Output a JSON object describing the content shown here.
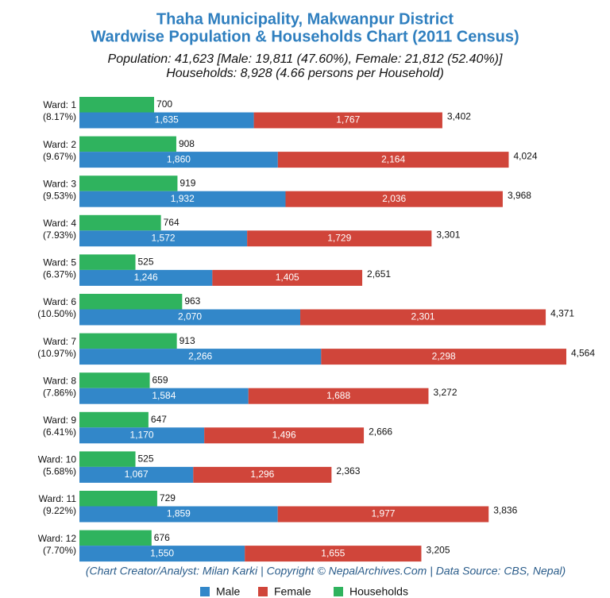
{
  "chart_data": {
    "type": "bar",
    "orientation": "horizontal",
    "title": [
      "Thaha Municipality, Makwanpur District",
      "Wardwise Population & Households Chart (2011 Census)"
    ],
    "subtitle": [
      "Population: 41,623 [Male: 19,811 (47.60%), Female: 21,812 (52.40%)]",
      "Households: 8,928 (4.66 persons per Household)"
    ],
    "credit": "(Chart Creator/Analyst: Milan Karki | Copyright © NepalArchives.Com | Data Source: CBS, Nepal)",
    "categories": [
      "Ward: 1",
      "Ward: 2",
      "Ward: 3",
      "Ward: 4",
      "Ward: 5",
      "Ward: 6",
      "Ward: 7",
      "Ward: 8",
      "Ward: 9",
      "Ward: 10",
      "Ward: 11",
      "Ward: 12"
    ],
    "category_sublabels": [
      "(8.17%)",
      "(9.67%)",
      "(9.53%)",
      "(7.93%)",
      "(6.37%)",
      "(10.50%)",
      "(10.97%)",
      "(7.86%)",
      "(6.41%)",
      "(5.68%)",
      "(9.22%)",
      "(7.70%)"
    ],
    "series": [
      {
        "name": "Male",
        "color": "#3287c9",
        "stack": "population",
        "values": [
          1635,
          1860,
          1932,
          1572,
          1246,
          2070,
          2266,
          1584,
          1170,
          1067,
          1859,
          1550
        ],
        "value_labels": [
          "1,635",
          "1,860",
          "1,932",
          "1,572",
          "1,246",
          "2,070",
          "2,266",
          "1,584",
          "1,170",
          "1,067",
          "1,859",
          "1,550"
        ]
      },
      {
        "name": "Female",
        "color": "#d0453a",
        "stack": "population",
        "values": [
          1767,
          2164,
          2036,
          1729,
          1405,
          2301,
          2298,
          1688,
          1496,
          1296,
          1977,
          1655
        ],
        "value_labels": [
          "1,767",
          "2,164",
          "2,036",
          "1,729",
          "1,405",
          "2,301",
          "2,298",
          "1,688",
          "1,496",
          "1,296",
          "1,977",
          "1,655"
        ]
      },
      {
        "name": "Households",
        "color": "#2fb35e",
        "values": [
          700,
          908,
          919,
          764,
          525,
          963,
          913,
          659,
          647,
          525,
          729,
          676
        ]
      }
    ],
    "total_labels": [
      "3,402",
      "4,024",
      "3,968",
      "3,301",
      "2,651",
      "4,371",
      "4,564",
      "3,272",
      "2,666",
      "2,363",
      "3,836",
      "3,205"
    ],
    "legend": "bottom"
  }
}
